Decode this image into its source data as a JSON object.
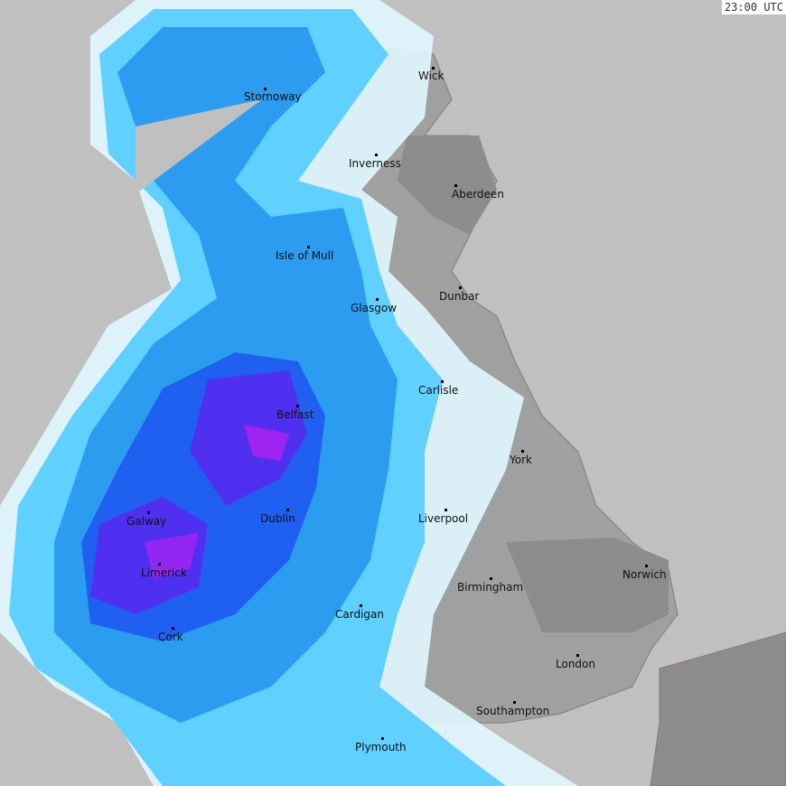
{
  "timestamp": "23:00 UTC",
  "colors": {
    "sea": "#c0c0c0",
    "land": "#a0a0a0",
    "land_dark": "#8c8c8c",
    "coastline": "#8a7a6a",
    "light_rain": "#e0f8ff",
    "rain_cyan": "#60d0ff",
    "rain_blue": "#2c9cf0",
    "rain_deep": "#2060f0",
    "rain_violet": "#5030f0",
    "rain_magenta": "#c020f0"
  },
  "cities": [
    {
      "name": "Stornoway"
    },
    {
      "name": "Wick"
    },
    {
      "name": "Inverness"
    },
    {
      "name": "Aberdeen"
    },
    {
      "name": "Isle of Mull"
    },
    {
      "name": "Dunbar"
    },
    {
      "name": "Glasgow"
    },
    {
      "name": "Carlisle"
    },
    {
      "name": "Belfast"
    },
    {
      "name": "York"
    },
    {
      "name": "Galway"
    },
    {
      "name": "Dublin"
    },
    {
      "name": "Liverpool"
    },
    {
      "name": "Norwich"
    },
    {
      "name": "Limerick"
    },
    {
      "name": "Birmingham"
    },
    {
      "name": "Cardigan"
    },
    {
      "name": "Cork"
    },
    {
      "name": "London"
    },
    {
      "name": "Southampton"
    },
    {
      "name": "Plymouth"
    }
  ]
}
